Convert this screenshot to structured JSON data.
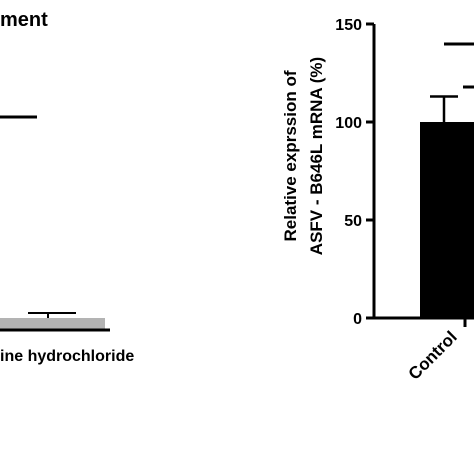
{
  "chart_data": [
    {
      "type": "bar",
      "title": "ment",
      "categories": [
        "ine hydrochloride"
      ],
      "series": [
        {
          "values": [
            5
          ]
        }
      ],
      "colors": {
        "bar": "#b3b3b3",
        "axis": "#000000"
      }
    },
    {
      "type": "bar",
      "ylabel_line1": "Relative exprssion of",
      "ylabel_line2": "ASFV - B646L mRNA (%)",
      "categories": [
        "Control"
      ],
      "series": [
        {
          "values": [
            100
          ],
          "error": [
            13
          ]
        }
      ],
      "ylim": [
        0,
        150
      ],
      "yticks": [
        "0",
        "50",
        "100",
        "150"
      ],
      "colors": {
        "bar": "#000000",
        "axis": "#000000"
      }
    }
  ]
}
